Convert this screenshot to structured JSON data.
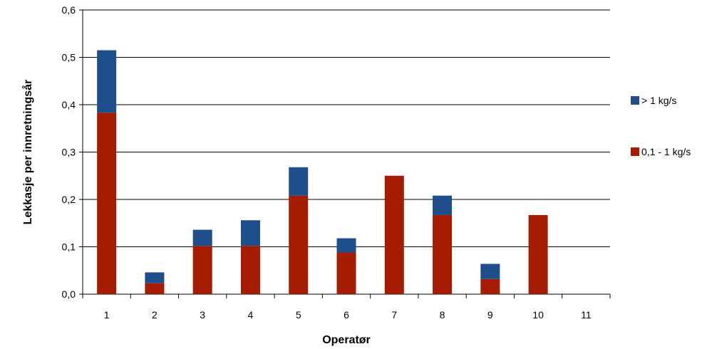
{
  "chart_data": {
    "type": "bar",
    "stacked": true,
    "title": "",
    "xlabel": "Operatør",
    "ylabel": "Lekkasje per innretningsår",
    "categories": [
      "1",
      "2",
      "3",
      "4",
      "5",
      "6",
      "7",
      "8",
      "9",
      "10",
      "11"
    ],
    "ylim": [
      0,
      0.6
    ],
    "yticks": [
      "0,0",
      "0,1",
      "0,2",
      "0,3",
      "0,4",
      "0,5",
      "0,6"
    ],
    "grid": true,
    "legend_position": "right",
    "series": [
      {
        "name": "0,1 - 1 kg/s",
        "color": "#A61C00",
        "values": [
          0.383,
          0.023,
          0.102,
          0.102,
          0.208,
          0.088,
          0.25,
          0.167,
          0.032,
          0.167,
          0
        ]
      },
      {
        "name": "> 1 kg/s",
        "color": "#1F4E8C",
        "values": [
          0.132,
          0.023,
          0.034,
          0.054,
          0.06,
          0.03,
          0,
          0.041,
          0.032,
          0,
          0
        ]
      }
    ],
    "legend_order": [
      "> 1 kg/s",
      "0,1 - 1 kg/s"
    ]
  }
}
